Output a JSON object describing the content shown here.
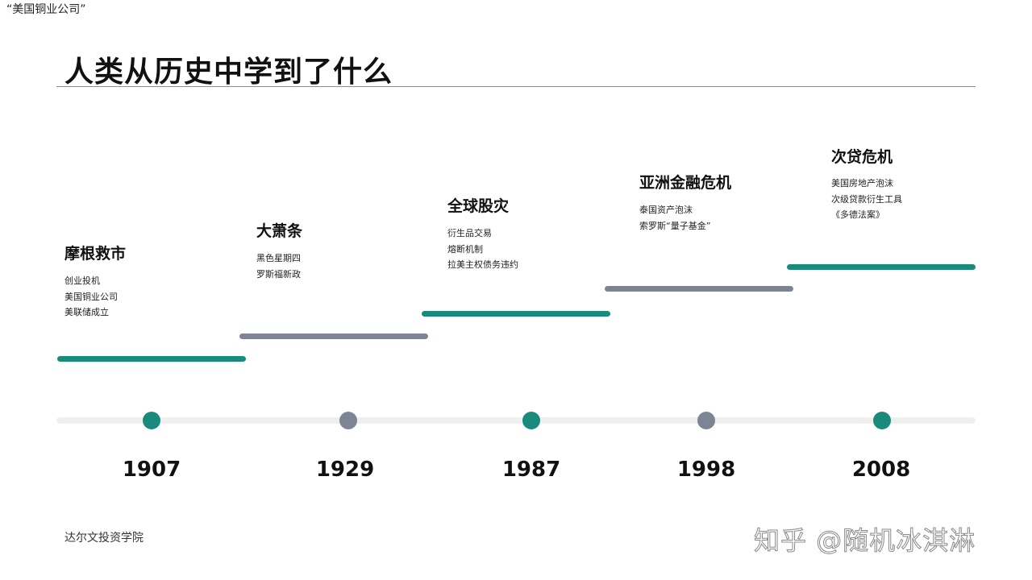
{
  "top_note": "“美国铜业公司”",
  "title": "人类从历史中学到了什么",
  "events": [
    {
      "year": "1907",
      "title": "摩根救市",
      "items": [
        "创业投机",
        "美国铜业公司",
        "美联储成立"
      ],
      "color": "#1a8a7c"
    },
    {
      "year": "1929",
      "title": "大萧条",
      "items": [
        "黑色星期四",
        "罗斯福新政"
      ],
      "color": "#7b8594"
    },
    {
      "year": "1987",
      "title": "全球股灾",
      "items": [
        "衍生品交易",
        "熔断机制",
        "拉美主权债务违约"
      ],
      "color": "#1a8a7c"
    },
    {
      "year": "1998",
      "title": "亚洲金融危机",
      "items": [
        "泰国资产泡沫",
        "索罗斯“量子基金”"
      ],
      "color": "#7b8594"
    },
    {
      "year": "2008",
      "title": "次贷危机",
      "items": [
        "美国房地产泡沫",
        "次级贷款衍生工具",
        "《多德法案》"
      ],
      "color": "#1a8a7c"
    }
  ],
  "footer": "达尔文投资学院",
  "watermark": "知乎 @随机冰淇淋"
}
